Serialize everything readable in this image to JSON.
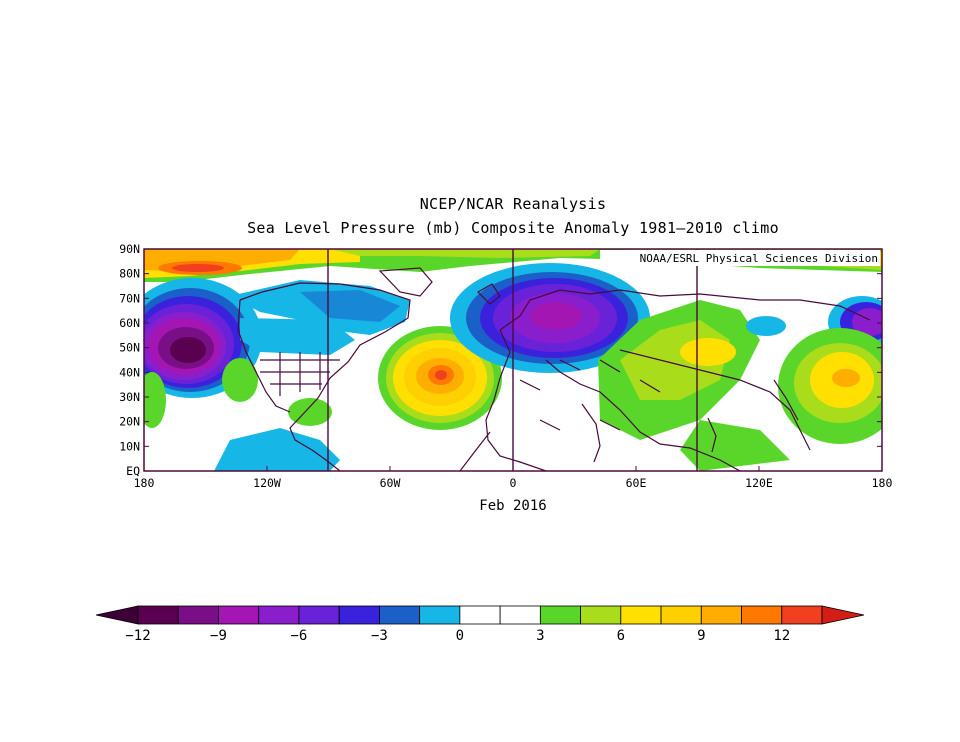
{
  "title_line1": "NCEP/NCAR Reanalysis",
  "title_line2": "Sea Level Pressure (mb) Composite Anomaly 1981–2010 climo",
  "credit": "NOAA/ESRL Physical Sciences Division",
  "date_label": "Feb 2016",
  "lon_labels": [
    "180",
    "120W",
    "60W",
    "0",
    "60E",
    "120E",
    "180"
  ],
  "lat_labels": [
    "EQ",
    "10N",
    "20N",
    "30N",
    "40N",
    "50N",
    "60N",
    "70N",
    "80N",
    "90N"
  ],
  "colorbar": {
    "labels": [
      "−12",
      "−9",
      "−6",
      "−3",
      "0",
      "3",
      "6",
      "9",
      "12"
    ],
    "colors": [
      "#5a0050",
      "#7a0e86",
      "#a316b4",
      "#8a1ecc",
      "#6a22d8",
      "#3a22dd",
      "#1a60c8",
      "#16b6e6",
      "#ffffff",
      "#ffffff",
      "#59d629",
      "#a9dd1c",
      "#ffe000",
      "#ffd000",
      "#ffae00",
      "#ff7800",
      "#f04020"
    ],
    "under_color": "#3c0036",
    "over_color": "#d21e14"
  },
  "map_colors": {
    "ocean": "#ffffff",
    "country_border": "#4a0a3c",
    "gridline": "#4a0a3c"
  }
}
